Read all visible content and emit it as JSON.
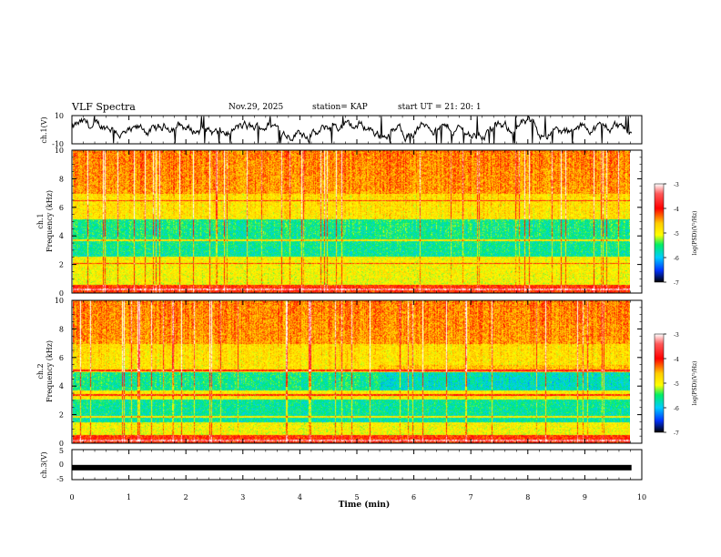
{
  "header": {
    "title": "VLF Spectra",
    "date": "Nov.29, 2025",
    "station": "station= KAP",
    "start_ut": "start  UT  =   21: 20: 1"
  },
  "chart_data": [
    {
      "type": "line",
      "name": "ch1-waveform",
      "ylabel": "ch.1(V)",
      "ylim": [
        -10,
        10
      ],
      "yticks": [
        "10",
        "-10"
      ],
      "xlim": [
        0,
        10
      ]
    },
    {
      "type": "heatmap",
      "name": "ch1-spectrogram",
      "ylabel_line1": "ch.1",
      "ylabel_line2": "Frequency (kHz)",
      "ylim": [
        0,
        10
      ],
      "yticks": [
        "0",
        "2",
        "4",
        "6",
        "8",
        "10"
      ],
      "colorbar": {
        "label": "log(PSD)(V²/Hz)",
        "range": [
          -7,
          -3
        ],
        "ticks": [
          "-3",
          "-4",
          "-5",
          "-6",
          "-7"
        ]
      },
      "low_psd_bands_khz": [
        [
          2.6,
          5.2
        ]
      ],
      "high_psd_lines_khz": [
        0.3,
        2.1,
        3.7,
        6.5
      ]
    },
    {
      "type": "heatmap",
      "name": "ch2-spectrogram",
      "ylabel_line1": "ch.2",
      "ylabel_line2": "Frequency (kHz)",
      "ylim": [
        0,
        10
      ],
      "yticks": [
        "0",
        "2",
        "4",
        "6",
        "8",
        "10"
      ],
      "colorbar": {
        "label": "log(PSD)(V²/Hz)",
        "range": [
          -7,
          -3
        ],
        "ticks": [
          "-3",
          "-4",
          "-5",
          "-6",
          "-7"
        ]
      },
      "low_psd_bands_khz": [
        [
          1.5,
          3.1
        ],
        [
          3.7,
          5.0
        ]
      ],
      "high_psd_lines_khz": [
        0.2,
        1.9,
        3.4,
        5.1
      ]
    },
    {
      "type": "line",
      "name": "ch3-waveform",
      "ylabel": "ch.3(V)",
      "ylim": [
        -5,
        5
      ],
      "yticks": [
        "5",
        "0",
        "-5"
      ],
      "level": -1,
      "xlim": [
        0,
        10
      ]
    }
  ],
  "xaxis": {
    "label": "Time (min)",
    "ticks": [
      "0",
      "1",
      "2",
      "3",
      "4",
      "5",
      "6",
      "7",
      "8",
      "9",
      "10"
    ],
    "range": [
      0,
      10
    ]
  }
}
